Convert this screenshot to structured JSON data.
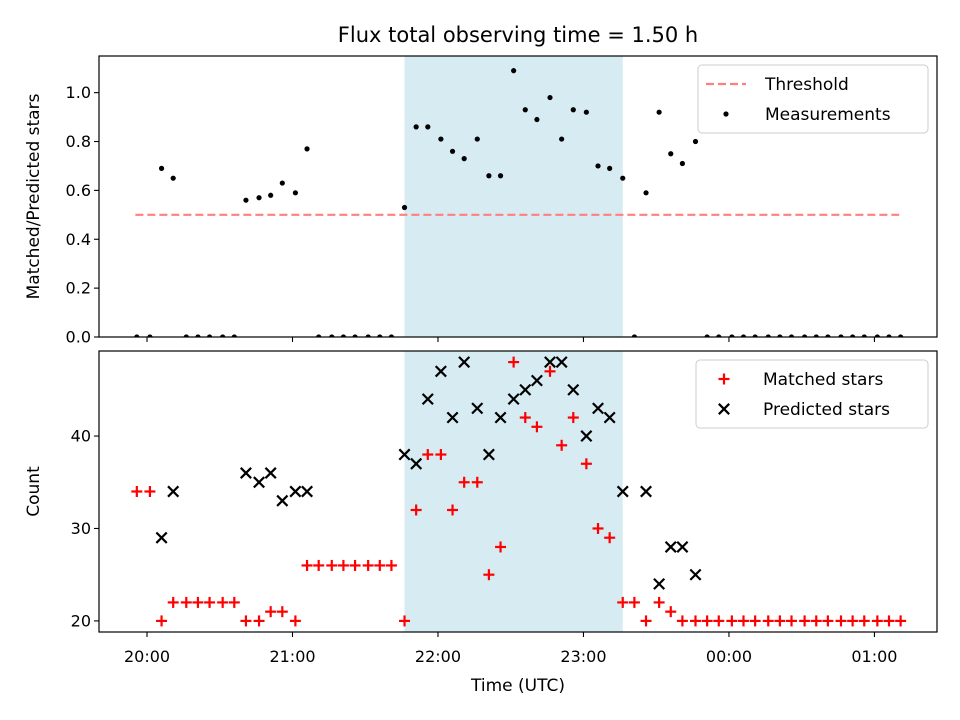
{
  "chart_data": {
    "type": "scatter",
    "title": "Flux total observing time = 1.50 h",
    "x_unit": "hours (UTC; values past 24 are after midnight)",
    "xlabel": "Time (UTC)",
    "xlim": [
      19.67,
      25.43
    ],
    "x_ticks": [
      {
        "value": 20,
        "label": "20:00"
      },
      {
        "value": 21,
        "label": "21:00"
      },
      {
        "value": 22,
        "label": "22:00"
      },
      {
        "value": 23,
        "label": "23:00"
      },
      {
        "value": 24,
        "label": "00:00"
      },
      {
        "value": 25,
        "label": "01:00"
      }
    ],
    "shaded_interval": {
      "x0": 21.77,
      "x1": 23.27,
      "color": "#add8e6"
    },
    "panels": [
      {
        "ylabel": "Matched/Predicted stars",
        "ylim": [
          0,
          1.15
        ],
        "y_ticks": [
          0.0,
          0.2,
          0.4,
          0.6,
          0.8,
          1.0
        ],
        "y_tick_labels": [
          "0.0",
          "0.2",
          "0.4",
          "0.6",
          "0.8",
          "1.0"
        ],
        "legend_position": "top-right",
        "series": [
          {
            "name": "Threshold",
            "kind": "line",
            "color": "#ff7f7f",
            "dashed": true,
            "x": [
              19.92,
              25.17
            ],
            "y": [
              0.5,
              0.5
            ]
          },
          {
            "name": "Measurements",
            "kind": "dot",
            "color": "#000000",
            "x": [
              19.93,
              20.02,
              20.1,
              20.18,
              20.27,
              20.35,
              20.43,
              20.52,
              20.6,
              20.68,
              20.77,
              20.85,
              20.93,
              21.02,
              21.1,
              21.18,
              21.27,
              21.35,
              21.43,
              21.52,
              21.6,
              21.68,
              21.77,
              21.85,
              21.93,
              22.02,
              22.1,
              22.18,
              22.27,
              22.35,
              22.43,
              22.52,
              22.6,
              22.68,
              22.77,
              22.85,
              22.93,
              23.02,
              23.1,
              23.18,
              23.27,
              23.35,
              23.43,
              23.52,
              23.6,
              23.68,
              23.77,
              23.85,
              23.93,
              24.02,
              24.1,
              24.18,
              24.27,
              24.35,
              24.43,
              24.52,
              24.6,
              24.68,
              24.77,
              24.85,
              24.93,
              25.02,
              25.1,
              25.18
            ],
            "y": [
              0.0,
              0.0,
              0.69,
              0.65,
              0.0,
              0.0,
              0.0,
              0.0,
              0.0,
              0.56,
              0.57,
              0.58,
              0.63,
              0.59,
              0.77,
              0.0,
              0.0,
              0.0,
              0.0,
              0.0,
              0.0,
              0.0,
              0.53,
              0.86,
              0.86,
              0.81,
              0.76,
              0.73,
              0.81,
              0.66,
              0.66,
              1.09,
              0.93,
              0.89,
              0.98,
              0.81,
              0.93,
              0.92,
              0.7,
              0.69,
              0.65,
              0.0,
              0.59,
              0.92,
              0.75,
              0.71,
              0.8,
              0.0,
              0.0,
              0.0,
              0.0,
              0.0,
              0.0,
              0.0,
              0.0,
              0.0,
              0.0,
              0.0,
              0.0,
              0.0,
              0.0,
              0.0,
              0.0,
              0.0
            ]
          }
        ]
      },
      {
        "ylabel": "Count",
        "ylim": [
          18.8,
          49.2
        ],
        "y_ticks": [
          20,
          30,
          40
        ],
        "y_tick_labels": [
          "20",
          "30",
          "40"
        ],
        "legend_position": "top-right",
        "series": [
          {
            "name": "Matched stars",
            "kind": "plus",
            "color": "#ff0000",
            "x": [
              19.93,
              20.02,
              20.1,
              20.18,
              20.27,
              20.35,
              20.43,
              20.52,
              20.6,
              20.68,
              20.77,
              20.85,
              20.93,
              21.02,
              21.1,
              21.18,
              21.27,
              21.35,
              21.43,
              21.52,
              21.6,
              21.68,
              21.77,
              21.85,
              21.93,
              22.02,
              22.1,
              22.18,
              22.27,
              22.35,
              22.43,
              22.52,
              22.6,
              22.68,
              22.77,
              22.85,
              22.93,
              23.02,
              23.1,
              23.18,
              23.27,
              23.35,
              23.43,
              23.52,
              23.6,
              23.68,
              23.77,
              23.85,
              23.93,
              24.02,
              24.1,
              24.18,
              24.27,
              24.35,
              24.43,
              24.52,
              24.6,
              24.68,
              24.77,
              24.85,
              24.93,
              25.02,
              25.1,
              25.18
            ],
            "y": [
              34,
              34,
              20,
              22,
              22,
              22,
              22,
              22,
              22,
              20,
              20,
              21,
              21,
              20,
              26,
              26,
              26,
              26,
              26,
              26,
              26,
              26,
              20,
              32,
              38,
              38,
              32,
              35,
              35,
              25,
              28,
              48,
              42,
              41,
              47,
              39,
              42,
              37,
              30,
              29,
              22,
              22,
              20,
              22,
              21,
              20,
              20,
              20,
              20,
              20,
              20,
              20,
              20,
              20,
              20,
              20,
              20,
              20,
              20,
              20,
              20,
              20,
              20,
              20
            ]
          },
          {
            "name": "Predicted stars",
            "kind": "x",
            "color": "#000000",
            "x": [
              20.1,
              20.18,
              20.68,
              20.77,
              20.85,
              20.93,
              21.02,
              21.1,
              21.77,
              21.85,
              21.93,
              22.02,
              22.1,
              22.18,
              22.27,
              22.35,
              22.43,
              22.52,
              22.6,
              22.68,
              22.77,
              22.85,
              22.93,
              23.02,
              23.1,
              23.18,
              23.27,
              23.43,
              23.52,
              23.6,
              23.68,
              23.77
            ],
            "y": [
              29,
              34,
              36,
              35,
              36,
              33,
              34,
              34,
              38,
              37,
              44,
              47,
              42,
              48,
              43,
              38,
              42,
              44,
              45,
              46,
              48,
              48,
              45,
              40,
              43,
              42,
              34,
              34,
              24,
              28,
              28,
              25
            ]
          }
        ]
      }
    ]
  }
}
